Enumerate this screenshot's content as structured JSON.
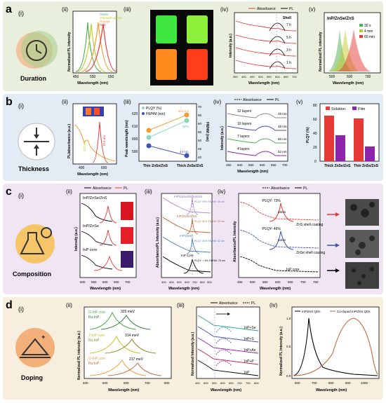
{
  "rows": [
    {
      "id": "a",
      "label": "a",
      "roman": "(i)",
      "title": "Duration",
      "bg": "#e8f0dd"
    },
    {
      "id": "b",
      "label": "b",
      "roman": "(i)",
      "title": "Thickness",
      "bg": "#e3ebf5"
    },
    {
      "id": "c",
      "label": "c",
      "roman": "(i)",
      "title": "Composition",
      "bg": "#efe5f3"
    },
    {
      "id": "d",
      "label": "d",
      "roman": "(i)",
      "title": "Doping",
      "bg": "#f8eede"
    }
  ],
  "colors": {
    "green": "#4caf50",
    "yellowgreen": "#c2c92a",
    "orange": "#f39c34",
    "red": "#e53935",
    "purple": "#8e24aa",
    "blue": "#3f51b5",
    "brown": "#c0663a",
    "black": "#000000"
  },
  "panel_labels": {
    "a": {
      "ii": "(ii)",
      "iii": "(iii)",
      "iv": "(iv)",
      "v": "(v)"
    },
    "b": {
      "ii": "(ii)",
      "iii": "(iii)",
      "iv": "(iv)",
      "v": "(v)"
    },
    "c": {
      "ii": "(ii)",
      "iii": "(iii)",
      "iv": "(iv)"
    },
    "d": {
      "ii": "(ii)",
      "iii": "(iii)",
      "iv": "(iv)"
    }
  },
  "chart_data": [
    {
      "id": "a-ii",
      "type": "line",
      "xlabel": "Wavelength (nm)",
      "ylabel": "Normalized PL intensity",
      "x_ticks": [
        "450",
        "550",
        "650"
      ],
      "series": [
        {
          "name": "Green",
          "peak": 520,
          "color": "#4caf50"
        },
        {
          "name": "Yellowish green",
          "peak": 545,
          "color": "#c2c92a"
        },
        {
          "name": "Orange",
          "peak": 590,
          "color": "#f39c34"
        },
        {
          "name": "Red",
          "peak": 625,
          "color": "#e53935"
        }
      ]
    },
    {
      "id": "a-iv",
      "type": "line",
      "xlabel": "Wavelength (nm)",
      "ylabel": "Intensity (a.u.)",
      "legend": [
        "Absorbance",
        "PL"
      ],
      "annotation": "Shell",
      "x_ticks": [
        "350",
        "400",
        "450",
        "500",
        "550",
        "600",
        "650",
        "700"
      ],
      "labels": [
        "7 h",
        "5 h",
        "3 h",
        "1 h"
      ]
    },
    {
      "id": "a-v",
      "type": "line",
      "title": "InP/ZnSe/ZnS",
      "xlabel": "Wavelength (nm)",
      "ylabel": "Normalized PL intensity",
      "x_ticks": [
        "500",
        "600",
        "700"
      ],
      "series": [
        {
          "name": "30 s",
          "peak": 530,
          "color": "#4caf50"
        },
        {
          "name": "4 min",
          "peak": 565,
          "color": "#c2c92a"
        },
        {
          "name": "60 min",
          "peak": 610,
          "color": "#e53935"
        }
      ]
    },
    {
      "id": "b-ii",
      "type": "line",
      "xlabel": "Wavelength (nm)",
      "ylabel": "PL/absorbance (a.u.)",
      "x_ticks": [
        "400",
        "600"
      ],
      "annotations": [
        "521 nm",
        "614 nm"
      ]
    },
    {
      "id": "b-iii",
      "type": "scatter",
      "xlabel": "",
      "ylabel": "Peak wavelength (nm)",
      "y2label": "FWHM (nm)",
      "categories": [
        "Thin ZnSe/ZnS",
        "Thick ZnSe/ZnS"
      ],
      "yticks": [
        "590",
        "600",
        "610",
        "620"
      ],
      "y2ticks": [
        "40",
        "45",
        "50",
        "55",
        "60",
        "65",
        "70"
      ],
      "series": [
        {
          "name": "PLQY (%)",
          "values": [
            610,
            620
          ]
        },
        {
          "name": "FWHM (nm)",
          "values": [
            600,
            593
          ]
        },
        {
          "name": "Peak",
          "values": [
            605,
            625
          ]
        }
      ],
      "annotations": [
        "621 nm",
        "92%",
        "44 nm"
      ]
    },
    {
      "id": "b-iv",
      "type": "line",
      "xlabel": "Wavelength (nm)",
      "ylabel": "Intensity (a.u.)",
      "legend": [
        "Absorbance",
        "PL"
      ],
      "x_ticks": [
        "450",
        "500",
        "550",
        "600",
        "650",
        "700"
      ],
      "labels": [
        "12 layers",
        "10 layers",
        "7 layers",
        "4 layers"
      ],
      "fwhm": [
        "49 nm",
        "48 nm",
        "50 nm",
        "52 nm"
      ]
    },
    {
      "id": "b-v",
      "type": "bar",
      "ylabel": "PLQY (%)",
      "categories": [
        "Thick ZnSe/ZnS",
        "Thin ZnSe/ZnS"
      ],
      "yticks": [
        "0",
        "20",
        "40",
        "60",
        "80"
      ],
      "ylim": [
        0,
        80
      ],
      "series": [
        {
          "name": "Solution",
          "values": [
            65,
            61
          ],
          "color": "#e53935"
        },
        {
          "name": "Film",
          "values": [
            37,
            21
          ],
          "color": "#8e24aa"
        }
      ]
    },
    {
      "id": "c-ii",
      "type": "line",
      "xlabel": "Wavelength (nm)",
      "ylabel": "Intensity (a.u.)",
      "legend": [
        "Absorbance",
        "PL"
      ],
      "x_ticks": [
        "500",
        "550",
        "600",
        "650",
        "700"
      ],
      "labels": [
        "InP/ZnSe/ZnS",
        "InP/ZnSe",
        "InP core"
      ]
    },
    {
      "id": "c-iii",
      "type": "line",
      "xlabel": "Wavelength (nm)",
      "ylabel": "Absorbance/PL Intensity (a.u.)",
      "x_ticks": [
        "300",
        "400",
        "500",
        "600",
        "700",
        "800",
        "900"
      ],
      "labels": [
        "InP/ZnSe/ZnSe/ZnS",
        "InP/ZnSe/ZnS",
        "InP/ZnSe",
        "InP Core"
      ],
      "notes": [
        "PLQY: 95% FWHM: 36 nm",
        "PLQY: 80% FWHM: 39 nm",
        "PLQY: 40% FWHM: 52 nm",
        "PLQY: < 5% FWHM: 75 nm"
      ]
    },
    {
      "id": "c-iv",
      "type": "line",
      "xlabel": "Wavelength (nm)",
      "ylabel": "Absorbance/PL Intensity",
      "legend": [
        "Absorbance",
        "PL"
      ],
      "x_ticks": [
        "450",
        "500",
        "550",
        "600",
        "650",
        "700",
        "750"
      ],
      "annotations": [
        "PLQY: 73%",
        "48nm",
        "PLQY: 46%",
        "53nm",
        "ZnS shell coating",
        "ZnSe shell coating",
        "InP core"
      ]
    },
    {
      "id": "d-ii",
      "type": "line",
      "xlabel": "Wavelength (nm)",
      "ylabel": "Normalized PL intensity (a.u.)",
      "x_ticks": [
        "400",
        "500",
        "600",
        "700",
        "800"
      ],
      "labels": [
        "G-InP core",
        "Ru:InP",
        "Y-InP core",
        "Ru:InP",
        "O-InP core",
        "Ru:InP"
      ],
      "annotations": [
        "325 meV",
        "314 meV",
        "217 meV"
      ]
    },
    {
      "id": "d-iii",
      "type": "line",
      "xlabel": "Wavelength (nm)",
      "ylabel": "Normalized Intensity (a.u.)",
      "legend": [
        "Absorbance",
        "PL"
      ],
      "x_ticks": [
        "450",
        "500",
        "550",
        "600",
        "650",
        "700",
        "750",
        "800"
      ],
      "labels": [
        "InP+Se",
        "InP+S",
        "InP+As",
        "InP+P",
        "InP"
      ]
    },
    {
      "id": "d-iv",
      "type": "line",
      "xlabel": "Wavelength (nm)",
      "ylabel": "Normalized PL Intensity (a.u.)",
      "x_ticks": [
        "600",
        "700",
        "800",
        "900",
        "1000"
      ],
      "yticks": [
        "0.0",
        "0.5",
        "1.0"
      ],
      "series": [
        {
          "name": "InP/ZnS QDs",
          "peak": 650,
          "color": "#000000"
        },
        {
          "name": "Cu-doped InP/ZnS QDs",
          "peak": 840,
          "color": "#c0663a"
        }
      ]
    }
  ]
}
